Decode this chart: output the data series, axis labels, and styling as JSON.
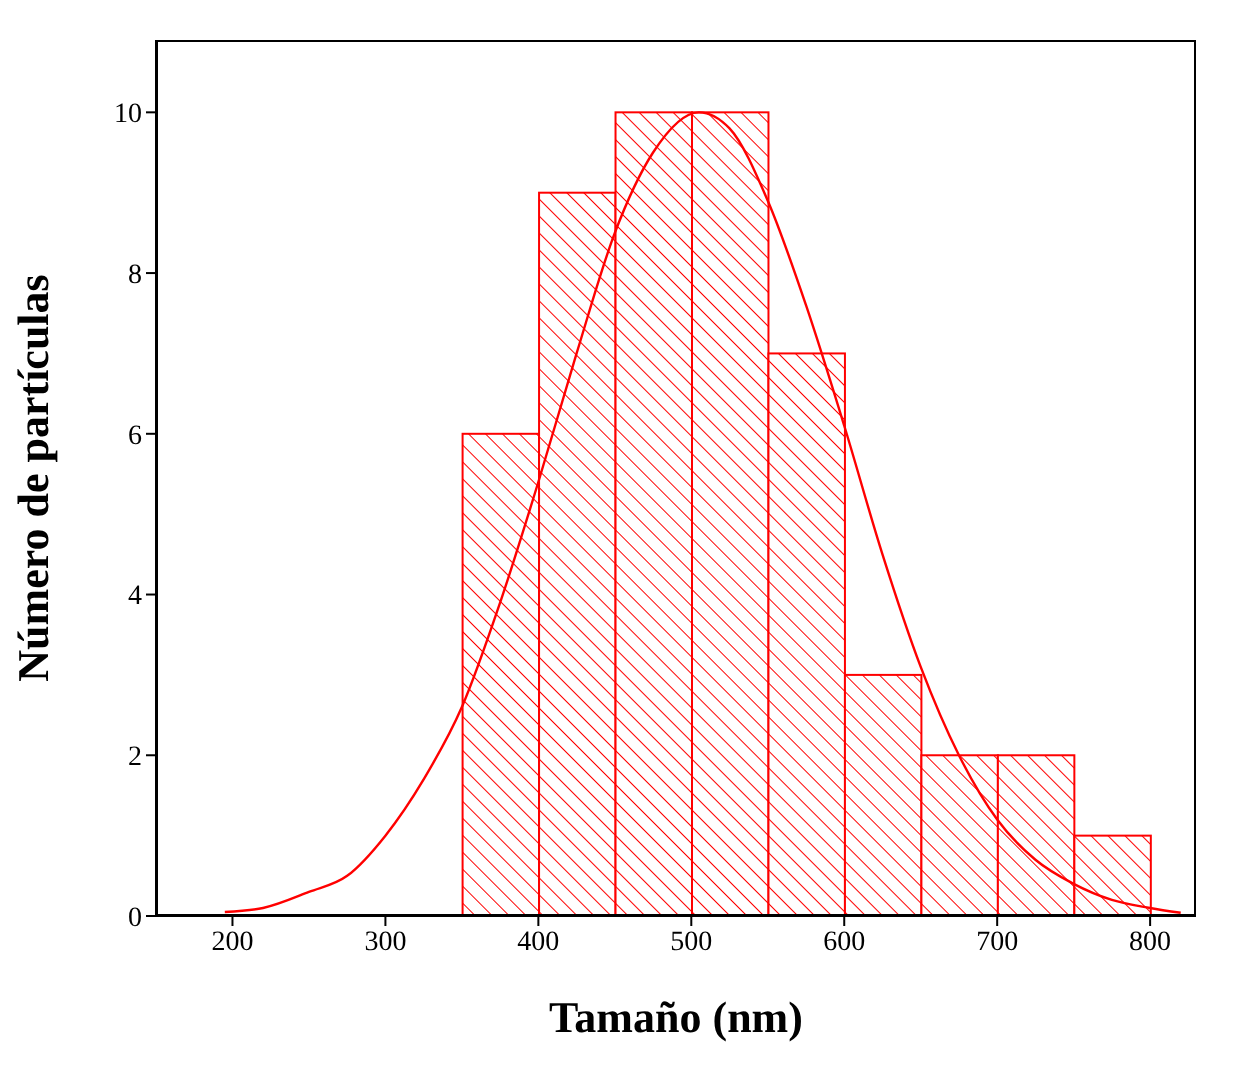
{
  "chart_data": {
    "type": "histogram",
    "xlabel": "Tamaño (nm)",
    "ylabel": "Número de partículas",
    "bins": [
      350,
      400,
      450,
      500,
      550,
      600,
      650,
      700,
      750,
      800
    ],
    "values": [
      6,
      9,
      10,
      10,
      7,
      3,
      2,
      2,
      1
    ],
    "color": "#ff0000",
    "xlim": [
      150,
      830
    ],
    "xticks": [
      200,
      300,
      400,
      500,
      600,
      700,
      800
    ],
    "ylim": [
      0,
      10.9
    ],
    "yticks": [
      0,
      2,
      4,
      6,
      8,
      10
    ],
    "series": [
      {
        "type": "line",
        "color": "#ff0000",
        "x": [
          195,
          220,
          250,
          275,
          300,
          325,
          350,
          375,
          400,
          425,
          450,
          475,
          505,
          525,
          550,
          575,
          600,
          625,
          650,
          675,
          700,
          725,
          750,
          775,
          800,
          820
        ],
        "values": [
          0.05,
          0.1,
          0.3,
          0.5,
          1.0,
          1.7,
          2.6,
          3.9,
          5.4,
          7.0,
          8.5,
          9.5,
          10,
          9.8,
          8.9,
          7.6,
          6.1,
          4.5,
          3.1,
          2.0,
          1.2,
          0.7,
          0.4,
          0.2,
          0.1,
          0.04
        ]
      }
    ],
    "marker": "none"
  }
}
